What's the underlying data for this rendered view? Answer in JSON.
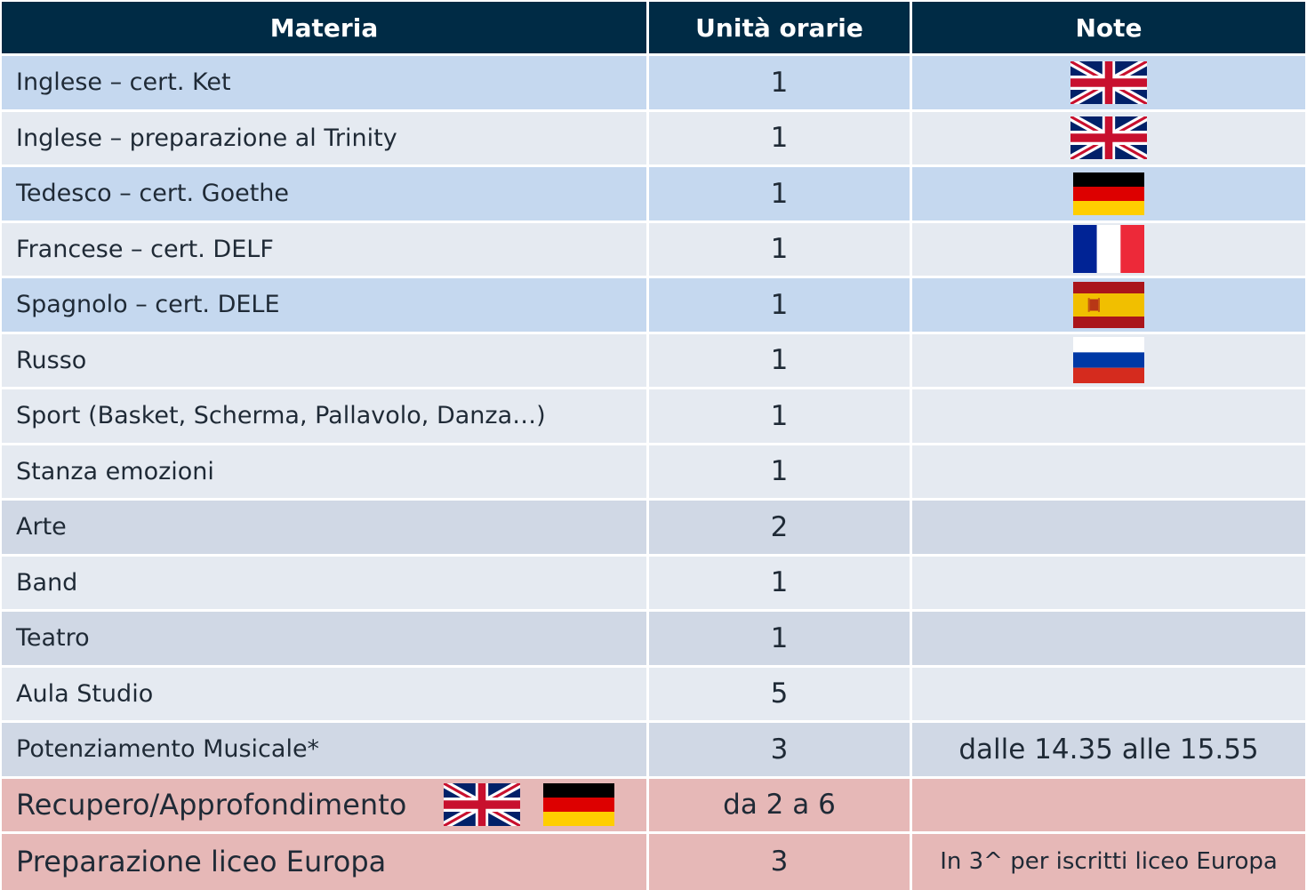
{
  "header": {
    "col1": "Materia",
    "col2": "Unità orarie",
    "col3": "Note"
  },
  "rows": [
    {
      "materia": "Inglese – cert. Ket",
      "unita": "1",
      "note": "",
      "flag": "uk-flag-icon"
    },
    {
      "materia": "Inglese – preparazione al Trinity",
      "unita": "1",
      "note": "",
      "flag": "uk-flag-icon"
    },
    {
      "materia": "Tedesco – cert. Goethe",
      "unita": "1",
      "note": "",
      "flag": "germany-flag-icon"
    },
    {
      "materia": "Francese – cert. DELF",
      "unita": "1",
      "note": "",
      "flag": "france-flag-icon"
    },
    {
      "materia": "Spagnolo – cert. DELE",
      "unita": "1",
      "note": "",
      "flag": "spain-flag-icon"
    },
    {
      "materia": "Russo",
      "unita": "1",
      "note": "",
      "flag": "russia-flag-icon"
    },
    {
      "materia": "Sport (Basket, Scherma, Pallavolo, Danza…)",
      "unita": "1",
      "note": ""
    },
    {
      "materia": "Stanza emozioni",
      "unita": "1",
      "note": ""
    },
    {
      "materia": "Arte",
      "unita": "2",
      "note": ""
    },
    {
      "materia": "Band",
      "unita": "1",
      "note": ""
    },
    {
      "materia": "Teatro",
      "unita": "1",
      "note": ""
    },
    {
      "materia": "Aula Studio",
      "unita": "5",
      "note": ""
    },
    {
      "materia": "Potenziamento Musicale*",
      "unita": "3",
      "note": "dalle 14.35 alle 15.55"
    },
    {
      "materia": "Recupero/Approfondimento",
      "unita": "da 2 a 6",
      "note": "",
      "flags_inline": [
        "uk-flag-icon",
        "germany-flag-icon"
      ]
    },
    {
      "materia": "Preparazione liceo Europa",
      "unita": "3",
      "note": "In 3^ per iscritti liceo Europa"
    }
  ],
  "colors": {
    "header_bg": "#002b45",
    "row_blue": "#c5d8ef",
    "row_pale": "#e5eaf1",
    "row_gray": "#d0d8e5",
    "row_pink": "#e6b8b7"
  }
}
